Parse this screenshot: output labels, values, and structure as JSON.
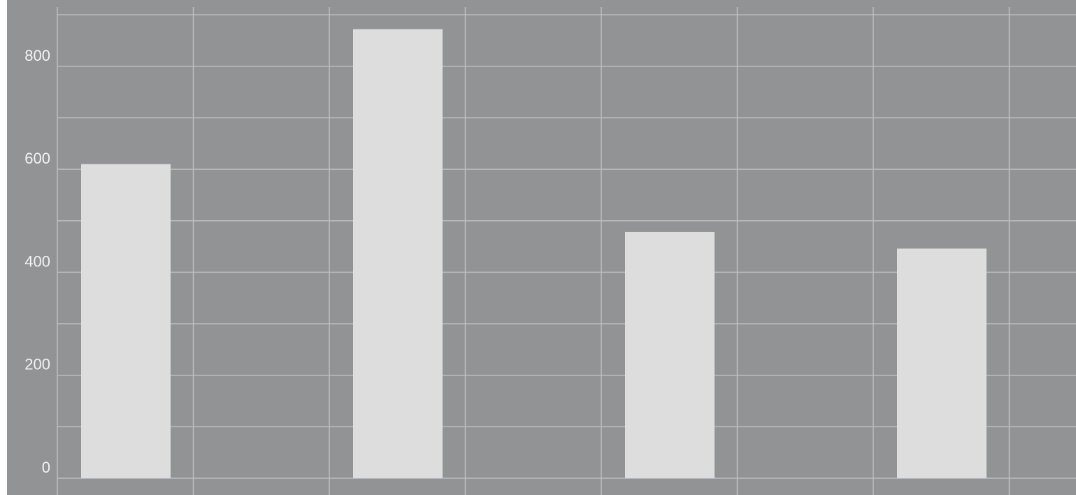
{
  "chart_data": {
    "type": "bar",
    "categories": [
      "",
      "",
      "",
      ""
    ],
    "values": [
      610,
      872,
      478,
      446
    ],
    "title": "",
    "xlabel": "",
    "ylabel": "",
    "ylim": [
      0,
      900
    ],
    "yticks": [
      0,
      200,
      400,
      600,
      800
    ],
    "ytick_labels": [
      "0",
      "200",
      "400",
      "600",
      "800"
    ],
    "grid": true,
    "legend": "none"
  },
  "colors": {
    "background": "#929394",
    "bar_fill": "#dcdddc",
    "grid": "#bdbebf",
    "tick_text": "#f2f2f2"
  }
}
